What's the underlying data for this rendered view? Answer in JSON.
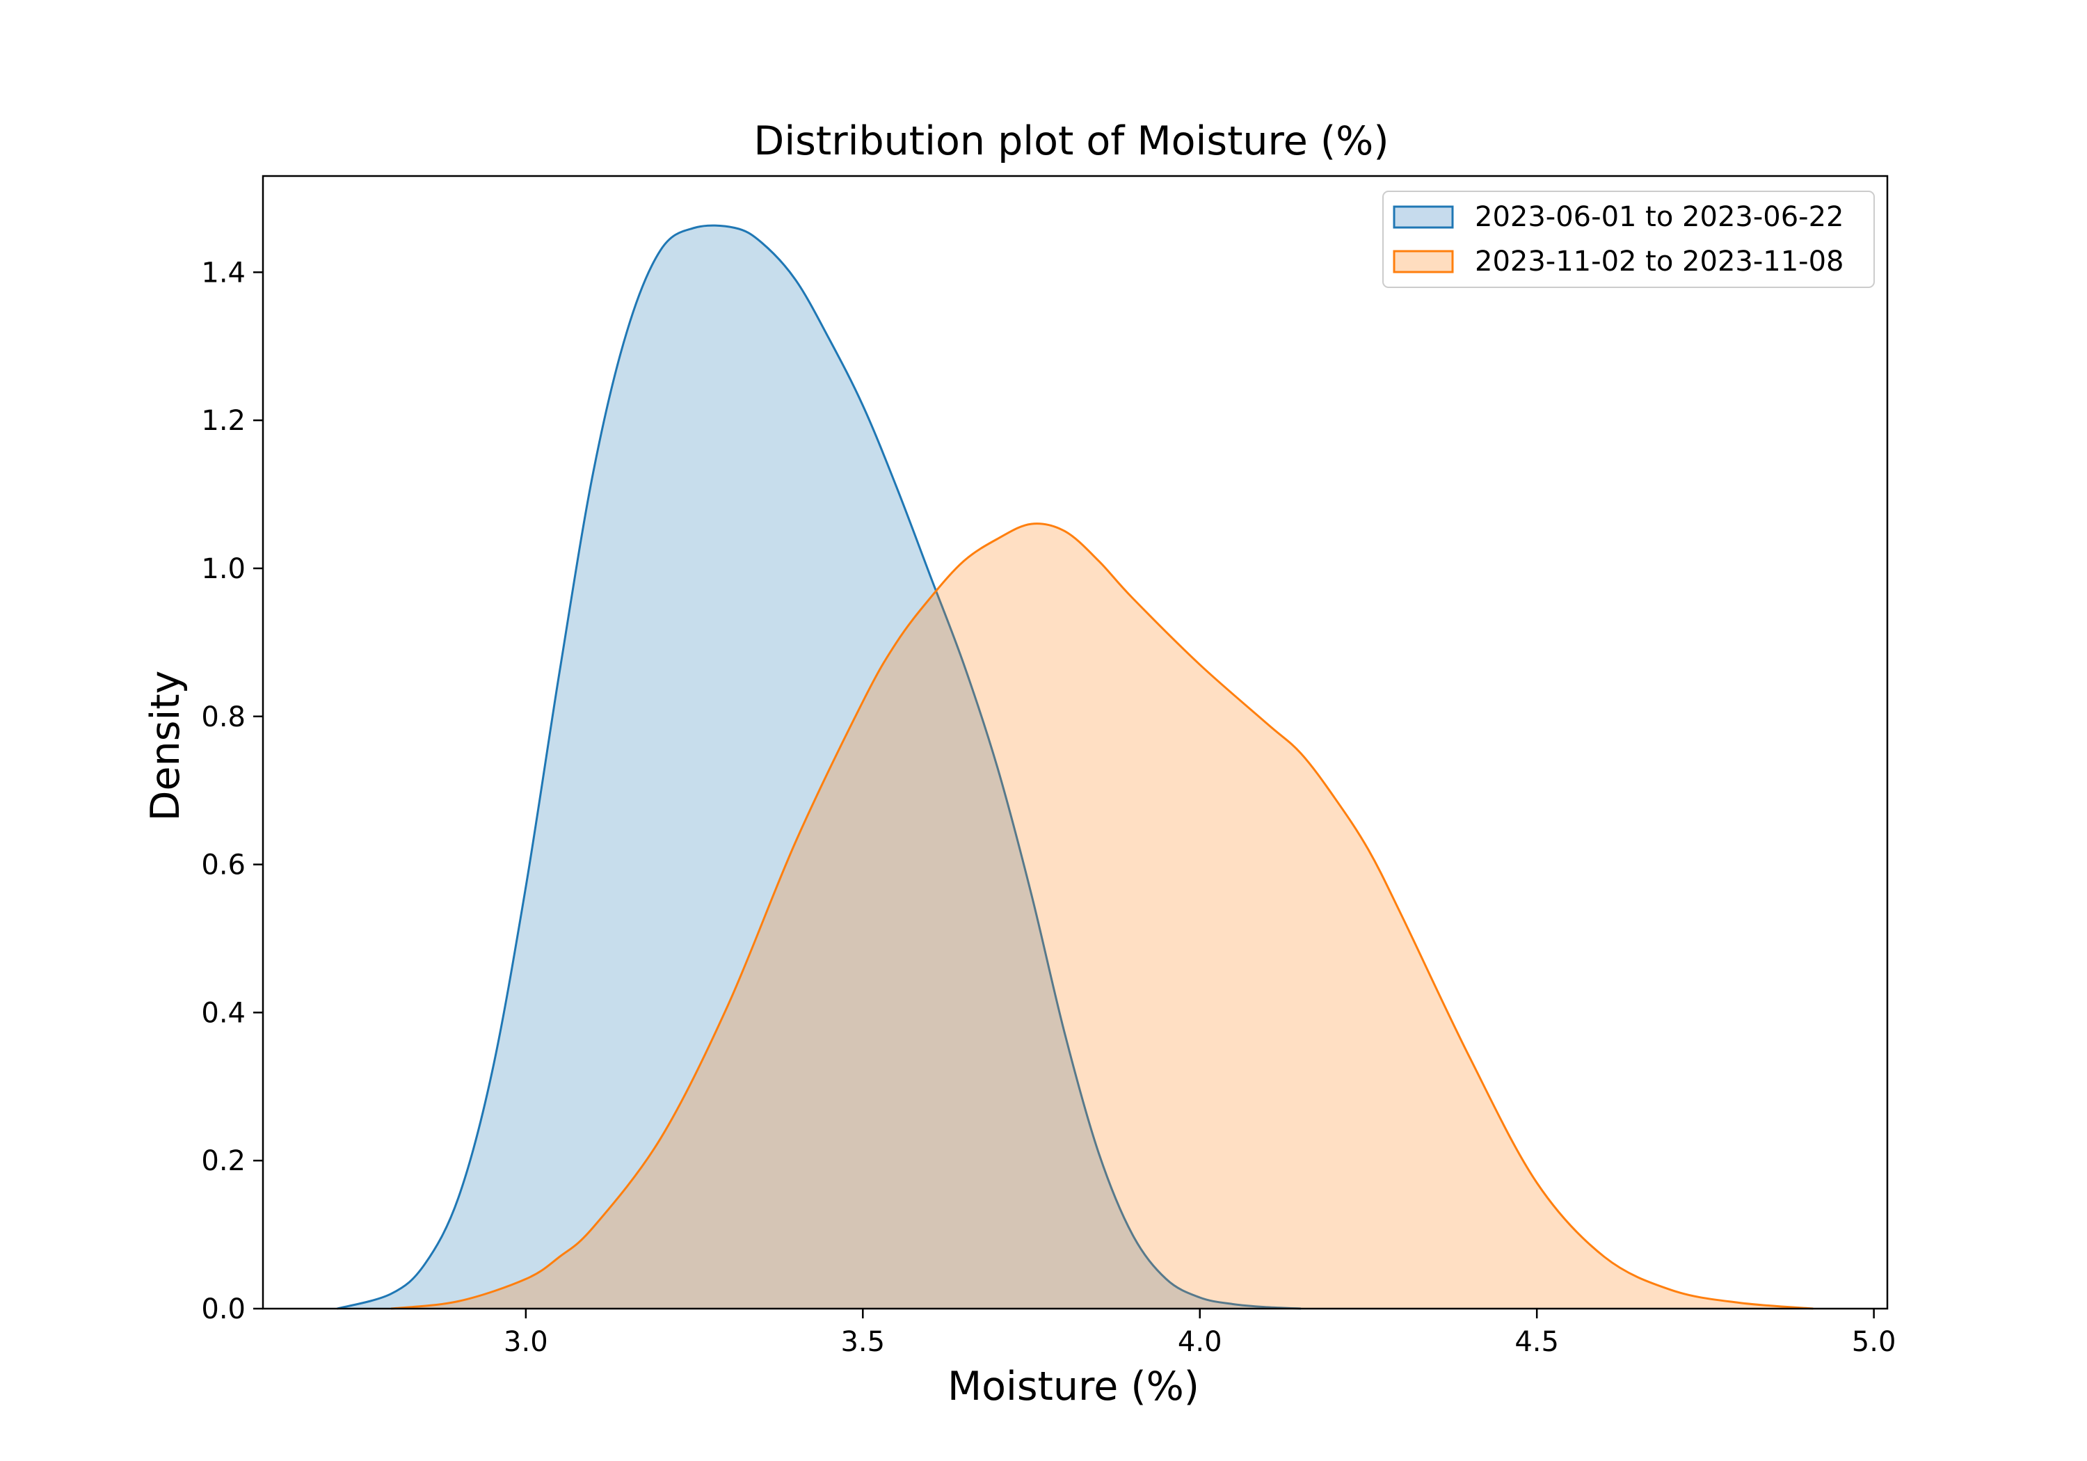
{
  "chart_data": {
    "type": "area",
    "title": "Distribution plot of Moisture (%)",
    "xlabel": "Moisture (%)",
    "ylabel": "Density",
    "xlim": [
      2.61,
      5.02
    ],
    "ylim": [
      0.0,
      1.53
    ],
    "xticks": [
      3.0,
      3.5,
      4.0,
      4.5,
      5.0
    ],
    "xtick_labels": [
      "3.0",
      "3.5",
      "4.0",
      "4.5",
      "5.0"
    ],
    "yticks": [
      0.0,
      0.2,
      0.4,
      0.6,
      0.8,
      1.0,
      1.2,
      1.4
    ],
    "ytick_labels": [
      "0.0",
      "0.2",
      "0.4",
      "0.6",
      "0.8",
      "1.0",
      "1.2",
      "1.4"
    ],
    "grid": false,
    "legend_position": "top-right",
    "series": [
      {
        "name": "2023-06-01 to 2023-06-22",
        "color": "#1f77b4",
        "fill": "#c6dbed",
        "x": [
          2.72,
          2.8,
          2.85,
          2.9,
          2.95,
          3.0,
          3.05,
          3.1,
          3.15,
          3.2,
          3.25,
          3.31,
          3.35,
          3.4,
          3.45,
          3.5,
          3.55,
          3.6,
          3.65,
          3.7,
          3.75,
          3.8,
          3.85,
          3.9,
          3.95,
          4.0,
          4.05,
          4.1,
          4.15
        ],
        "y": [
          0.0,
          0.02,
          0.06,
          0.15,
          0.32,
          0.57,
          0.86,
          1.13,
          1.32,
          1.43,
          1.46,
          1.46,
          1.44,
          1.39,
          1.31,
          1.22,
          1.11,
          0.99,
          0.87,
          0.73,
          0.56,
          0.37,
          0.21,
          0.1,
          0.04,
          0.015,
          0.006,
          0.002,
          0.0
        ]
      },
      {
        "name": "2023-11-02 to 2023-11-08",
        "color": "#ff7f0e",
        "fill": "#ffddbf",
        "x": [
          2.8,
          2.9,
          3.0,
          3.05,
          3.1,
          3.2,
          3.3,
          3.4,
          3.5,
          3.55,
          3.6,
          3.65,
          3.7,
          3.75,
          3.8,
          3.85,
          3.9,
          4.0,
          4.1,
          4.15,
          4.2,
          4.25,
          4.3,
          4.4,
          4.5,
          4.6,
          4.7,
          4.8,
          4.91
        ],
        "y": [
          0.0,
          0.01,
          0.04,
          0.07,
          0.11,
          0.23,
          0.41,
          0.63,
          0.82,
          0.9,
          0.96,
          1.01,
          1.04,
          1.06,
          1.05,
          1.01,
          0.96,
          0.87,
          0.79,
          0.75,
          0.69,
          0.62,
          0.53,
          0.34,
          0.17,
          0.07,
          0.025,
          0.008,
          0.0
        ]
      }
    ]
  }
}
